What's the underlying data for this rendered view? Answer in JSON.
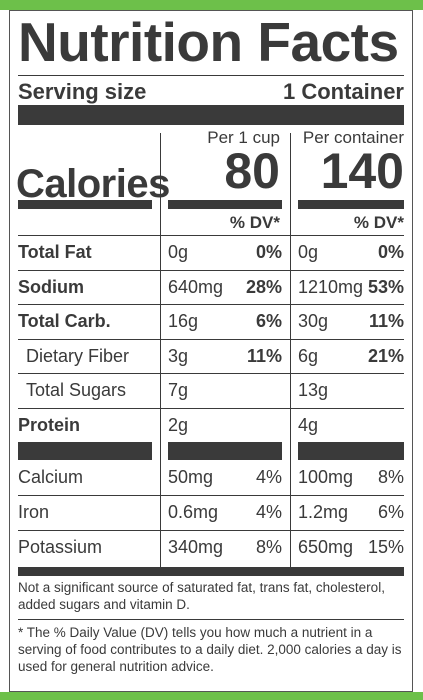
{
  "panel": {
    "title": "Nutrition Facts",
    "serving_label": "Serving size",
    "serving_value": "1 Container",
    "col1_header": "Per 1 cup",
    "col2_header": "Per container",
    "calories_label": "Calories",
    "calories_col1": "80",
    "calories_col2": "140",
    "dv_header": "% DV*"
  },
  "nutrients": [
    {
      "name": "Total Fat",
      "bold": true,
      "indent": false,
      "a1": "0g",
      "p1": "0%",
      "a2": "0g",
      "p2": "0%"
    },
    {
      "name": "Sodium",
      "bold": true,
      "indent": false,
      "a1": "640mg",
      "p1": "28%",
      "a2": "1210mg",
      "p2": "53%"
    },
    {
      "name": "Total Carb.",
      "bold": true,
      "indent": false,
      "a1": "16g",
      "p1": "6%",
      "a2": "30g",
      "p2": "11%"
    },
    {
      "name": "Dietary Fiber",
      "bold": false,
      "indent": true,
      "a1": "3g",
      "p1": "11%",
      "a2": "6g",
      "p2": "21%"
    },
    {
      "name": "Total Sugars",
      "bold": false,
      "indent": true,
      "a1": "7g",
      "p1": "",
      "a2": "13g",
      "p2": ""
    },
    {
      "name": "Protein",
      "bold": true,
      "indent": false,
      "a1": "2g",
      "p1": "",
      "a2": "4g",
      "p2": ""
    }
  ],
  "minerals": [
    {
      "name": "Calcium",
      "a1": "50mg",
      "p1": "4%",
      "a2": "100mg",
      "p2": "8%"
    },
    {
      "name": "Iron",
      "a1": "0.6mg",
      "p1": "4%",
      "a2": "1.2mg",
      "p2": "6%"
    },
    {
      "name": "Potassium",
      "a1": "340mg",
      "p1": "8%",
      "a2": "650mg",
      "p2": "15%"
    }
  ],
  "footnotes": {
    "not_significant": "Not a significant source of saturated fat, trans fat, cholesterol, added sugars and vitamin D.",
    "daily_value": "* The % Daily Value (DV) tells you how much a nutrient in a serving of food contributes to a daily diet. 2,000 calories a day is used for general nutrition advice."
  }
}
